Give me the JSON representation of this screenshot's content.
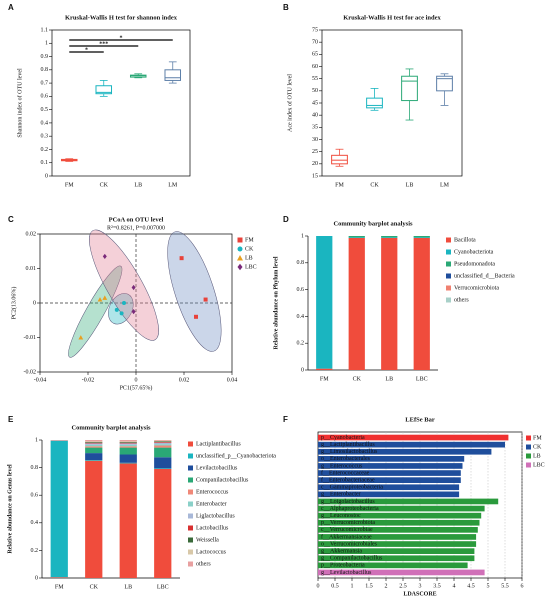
{
  "chart_data": [
    {
      "type": "box",
      "panel_label": "A",
      "title": "Kruskal-Wallis H test for shannon index",
      "y_label": "Shannon index of OTU level",
      "categories": [
        "FM",
        "CK",
        "LB",
        "LM"
      ],
      "colors": [
        "#f04c3c",
        "#1ab5c0",
        "#2aa876",
        "#5d7fa8"
      ],
      "boxes": [
        {
          "min": 0.11,
          "q1": 0.115,
          "median": 0.12,
          "q3": 0.125,
          "max": 0.13
        },
        {
          "min": 0.6,
          "q1": 0.62,
          "median": 0.63,
          "q3": 0.68,
          "max": 0.72
        },
        {
          "min": 0.74,
          "q1": 0.745,
          "median": 0.755,
          "q3": 0.76,
          "max": 0.77
        },
        {
          "min": 0.7,
          "q1": 0.72,
          "median": 0.74,
          "q3": 0.8,
          "max": 0.86
        }
      ],
      "ylim": [
        0,
        1.1
      ],
      "yticks": [
        0,
        0.1,
        0.2,
        0.3,
        0.4,
        0.5,
        0.6,
        0.7,
        0.8,
        0.9,
        1,
        1.1
      ],
      "annotations": [
        {
          "from": "FM",
          "to": "LM",
          "label": "*"
        },
        {
          "from": "FM",
          "to": "LB",
          "label": "***"
        },
        {
          "from": "FM",
          "to": "CK",
          "label": "*"
        }
      ]
    },
    {
      "type": "box",
      "panel_label": "B",
      "title": "Kruskal-Wallis H test for ace index",
      "y_label": "Ace index of OTU level",
      "categories": [
        "FM",
        "CK",
        "LB",
        "LM"
      ],
      "colors": [
        "#f04c3c",
        "#1ab5c0",
        "#2aa876",
        "#5d7fa8"
      ],
      "boxes": [
        {
          "min": 19,
          "q1": 20,
          "median": 21.5,
          "q3": 23.5,
          "max": 26
        },
        {
          "min": 42,
          "q1": 43,
          "median": 44,
          "q3": 47,
          "max": 51
        },
        {
          "min": 38,
          "q1": 46,
          "median": 54,
          "q3": 56,
          "max": 59
        },
        {
          "min": 44,
          "q1": 50,
          "median": 55,
          "q3": 56,
          "max": 57
        }
      ],
      "ylim": [
        15,
        75
      ],
      "yticks": [
        15,
        20,
        25,
        30,
        35,
        40,
        45,
        50,
        55,
        60,
        65,
        70,
        75
      ]
    },
    {
      "type": "scatter",
      "panel_label": "C",
      "title": "PCoA on OTU level",
      "subtitle": "R²=0.8261, P=0.007000",
      "x_label": "PC1(57.65%)",
      "y_label": "PC2(13.06%)",
      "zero_lines": true,
      "series": [
        {
          "name": "FM",
          "color": "#e8423a",
          "marker": "square",
          "x": [
            0.019,
            0.029,
            0.025
          ],
          "y": [
            0.013,
            0.001,
            -0.004
          ]
        },
        {
          "name": "CK",
          "color": "#1ab5c0",
          "marker": "circle",
          "x": [
            -0.008,
            -0.005,
            -0.006
          ],
          "y": [
            -0.002,
            0.0,
            -0.003
          ]
        },
        {
          "name": "LB",
          "color": "#e8a020",
          "marker": "triangle",
          "x": [
            -0.023,
            -0.013,
            -0.015
          ],
          "y": [
            -0.01,
            0.0015,
            0.001
          ]
        },
        {
          "name": "LBC",
          "color": "#7a2a7a",
          "marker": "diamond",
          "x": [
            -0.013,
            -0.001,
            -0.001
          ],
          "y": [
            0.0135,
            0.0045,
            -0.0025
          ]
        }
      ],
      "xlim": [
        -0.04,
        0.04
      ],
      "xticks": [
        -0.04,
        -0.02,
        0,
        0.02,
        0.04
      ],
      "ylim": [
        -0.02,
        0.02
      ],
      "yticks": [
        -0.02,
        -0.01,
        0,
        0.01,
        0.02
      ]
    },
    {
      "type": "stacked_bar",
      "panel_label": "D",
      "title": "Community barplot analysis",
      "y_label": "Relative abundance on Phylum level",
      "categories": [
        "FM",
        "CK",
        "LB",
        "LBC"
      ],
      "series": [
        {
          "name": "Bacillota",
          "color": "#f04c3c",
          "values": [
            0.01,
            0.985,
            0.985,
            0.985
          ]
        },
        {
          "name": "Cyanobacteriota",
          "color": "#1ab5c0",
          "values": [
            0.99,
            0.005,
            0.005,
            0.005
          ]
        },
        {
          "name": "Pseudomonadota",
          "color": "#2aa876",
          "values": [
            0,
            0.01,
            0.01,
            0.01
          ]
        },
        {
          "name": "unclassified_d__Bacteria",
          "color": "#1f4e9c",
          "values": [
            0,
            0,
            0,
            0
          ]
        },
        {
          "name": "Verrucomicrobiota",
          "color": "#f08070",
          "values": [
            0,
            0,
            0,
            0
          ]
        },
        {
          "name": "others",
          "color": "#a8d0c8",
          "values": [
            0,
            0,
            0,
            0
          ]
        }
      ],
      "ylim": [
        0,
        1
      ],
      "yticks": [
        0,
        0.2,
        0.4,
        0.6,
        0.8,
        1
      ]
    },
    {
      "type": "stacked_bar",
      "panel_label": "E",
      "title": "Community barplot analysis",
      "y_label": "Relative abundance on Genus level",
      "categories": [
        "FM",
        "CK",
        "LB",
        "LBC"
      ],
      "series": [
        {
          "name": "Lactiplantibacillus",
          "color": "#f04c3c",
          "values": [
            0.005,
            0.85,
            0.83,
            0.79
          ]
        },
        {
          "name": "unclassified_p__Cyanobacteriota",
          "color": "#1ab5c0",
          "values": [
            0.99,
            0.005,
            0.005,
            0.005
          ]
        },
        {
          "name": "Levilactobacillus",
          "color": "#1f4e9c",
          "values": [
            0,
            0.05,
            0.06,
            0.08
          ]
        },
        {
          "name": "Companilactobacillus",
          "color": "#2aa876",
          "values": [
            0,
            0.04,
            0.05,
            0.07
          ]
        },
        {
          "name": "Enterococcus",
          "color": "#f08878",
          "values": [
            0,
            0.01,
            0.01,
            0.015
          ]
        },
        {
          "name": "Enterobacter",
          "color": "#8ad0c8",
          "values": [
            0,
            0.01,
            0.01,
            0.01
          ]
        },
        {
          "name": "Liglactobacillus",
          "color": "#a8b8d8",
          "values": [
            0,
            0.01,
            0.01,
            0.01
          ]
        },
        {
          "name": "Lactobacillus",
          "color": "#d83030",
          "values": [
            0,
            0.005,
            0.005,
            0.005
          ]
        },
        {
          "name": "Weissella",
          "color": "#3a6a3a",
          "values": [
            0,
            0.005,
            0.005,
            0.005
          ]
        },
        {
          "name": "Lactococcus",
          "color": "#d8c8a8",
          "values": [
            0,
            0.005,
            0.005,
            0.005
          ]
        },
        {
          "name": "others",
          "color": "#e8a0a0",
          "values": [
            0.005,
            0.01,
            0.01,
            0.005
          ]
        }
      ],
      "ylim": [
        0,
        1
      ],
      "yticks": [
        0,
        0.2,
        0.4,
        0.6,
        0.8,
        1
      ]
    },
    {
      "type": "hbar",
      "panel_label": "F",
      "title": "LEfSe Bar",
      "x_label": "LDASCORE",
      "grid": true,
      "series": [
        {
          "name": "FM",
          "color": "#f03030",
          "categories": [
            "p__Cyanobacteria"
          ],
          "values": [
            5.6
          ]
        },
        {
          "name": "CK",
          "color": "#1f4e9c",
          "categories": [
            "g__Lactiplantibacillus",
            "g__Limosilactobacillus",
            "o__Enterobacterales",
            "g__Enterococcus",
            "f__Enterococcaceae",
            "f__Enterobacteriaceae",
            "c__Gammaproteobacteria",
            "g__Enterobacter"
          ],
          "values": [
            5.5,
            5.1,
            4.3,
            4.25,
            4.2,
            4.2,
            4.15,
            4.15
          ]
        },
        {
          "name": "LB",
          "color": "#2a9a3c",
          "categories": [
            "g__Loigolactobacillus",
            "c__Alphaproteobacteria",
            "g__Leuconostoc",
            "p__Verrucomicrobiota",
            "c__Verrucomicrobiae",
            "f__Akkermansiaceae",
            "o__Verrucomicrobiales",
            "g__Akkermansia",
            "g__Companilactobacillus",
            "p__Proteobacteria"
          ],
          "values": [
            5.3,
            4.9,
            4.8,
            4.75,
            4.7,
            4.65,
            4.65,
            4.6,
            4.6,
            4.4
          ]
        },
        {
          "name": "LBC",
          "color": "#d070b8",
          "categories": [
            "g__Levilactobacillus"
          ],
          "values": [
            4.9
          ]
        }
      ],
      "xlim": [
        0,
        6
      ],
      "xticks": [
        0,
        0.5,
        1,
        1.5,
        2,
        2.5,
        3,
        3.5,
        4,
        4.5,
        5,
        5.5,
        6
      ]
    }
  ]
}
